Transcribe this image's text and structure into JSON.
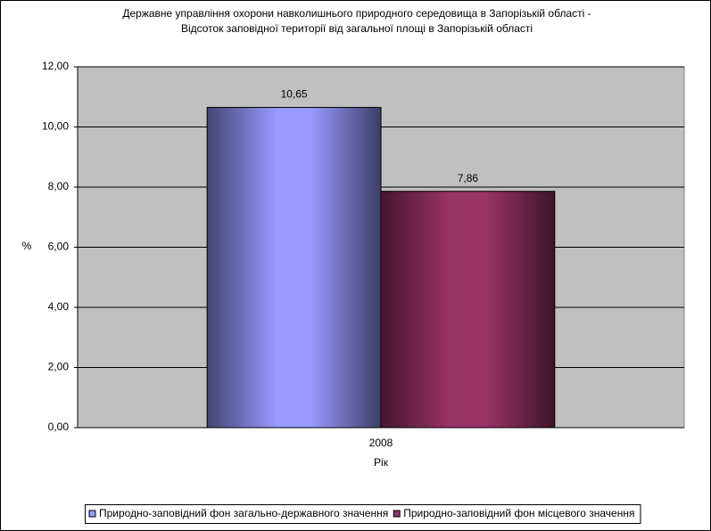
{
  "chart_data": {
    "type": "bar",
    "title": "Державне управління охорони навколишнього природного середовища в Запорізькій області -",
    "subtitle": "Відсоток заповідної території від загальної площі в Запорізькій області",
    "x_label": "Рік",
    "y_label": "%",
    "categories": [
      "2008"
    ],
    "series": [
      {
        "name": "Природно-заповідний фон загально-державного значення",
        "color": "#9999ff",
        "values": [
          10.65
        ],
        "value_labels": [
          "10,65"
        ]
      },
      {
        "name": "Природно-заповідний фон місцевого значення",
        "color": "#993366",
        "values": [
          7.86
        ],
        "value_labels": [
          "7,86"
        ]
      }
    ],
    "ylim": [
      0,
      12
    ],
    "yticks": [
      {
        "value": 0,
        "label": "0,00"
      },
      {
        "value": 2,
        "label": "2,00"
      },
      {
        "value": 4,
        "label": "4,00"
      },
      {
        "value": 6,
        "label": "6,00"
      },
      {
        "value": 8,
        "label": "8,00"
      },
      {
        "value": 10,
        "label": "10,00"
      },
      {
        "value": 12,
        "label": "12,00"
      }
    ],
    "grid": true,
    "legend": "bottom",
    "plot_background": "#c0c0c0"
  }
}
